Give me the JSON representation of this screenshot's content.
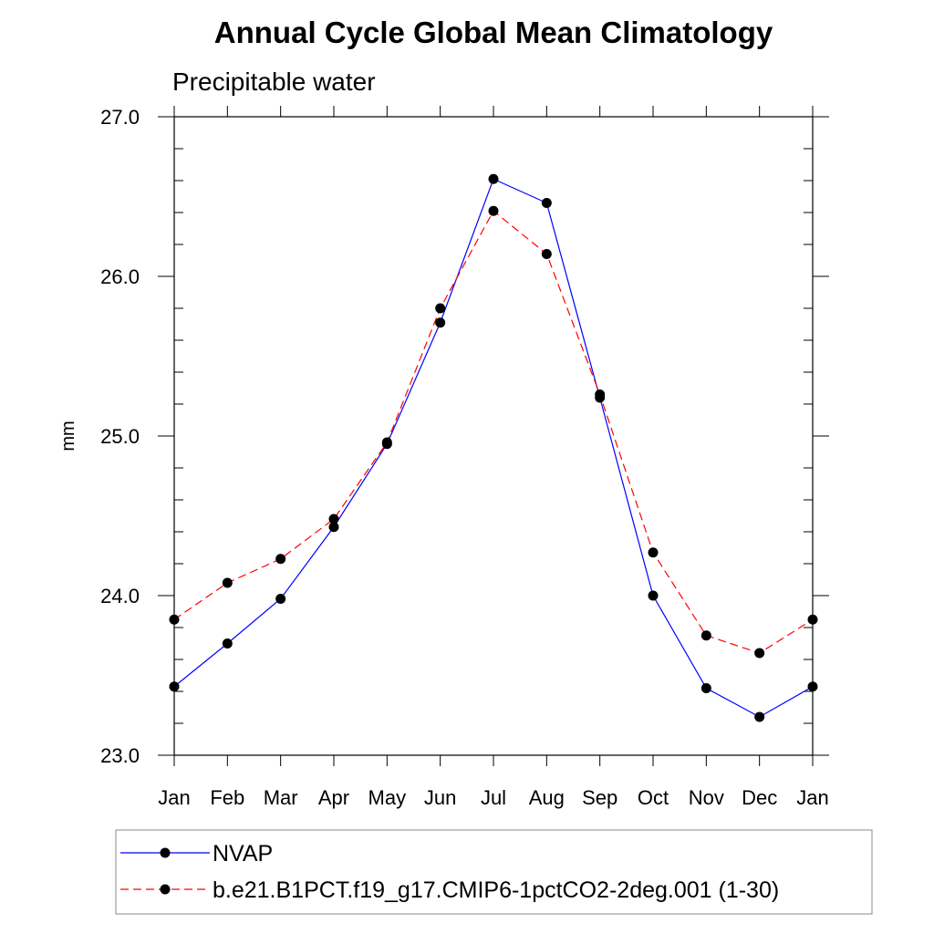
{
  "chart_data": {
    "type": "line",
    "title": "Annual Cycle Global Mean Climatology",
    "subtitle": "Precipitable water",
    "xlabel": "",
    "ylabel": "mm",
    "categories": [
      "Jan",
      "Feb",
      "Mar",
      "Apr",
      "May",
      "Jun",
      "Jul",
      "Aug",
      "Sep",
      "Oct",
      "Nov",
      "Dec",
      "Jan"
    ],
    "ylim": [
      23.0,
      27.0
    ],
    "yticks": [
      "23.0",
      "24.0",
      "25.0",
      "26.0",
      "27.0"
    ],
    "grid": false,
    "legend_position": "bottom",
    "series": [
      {
        "name": "NVAP",
        "color": "#0000ff",
        "style": "solid",
        "values": [
          23.43,
          23.7,
          23.98,
          24.43,
          24.95,
          25.71,
          26.61,
          26.46,
          25.24,
          24.0,
          23.42,
          23.24,
          23.43
        ]
      },
      {
        "name": "b.e21.B1PCT.f19_g17.CMIP6-1pctCO2-2deg.001 (1-30)",
        "color": "#ff0000",
        "style": "dashed",
        "values": [
          23.85,
          24.08,
          24.23,
          24.48,
          24.96,
          25.8,
          26.41,
          26.14,
          25.26,
          24.27,
          23.75,
          23.64,
          23.85
        ]
      }
    ]
  }
}
